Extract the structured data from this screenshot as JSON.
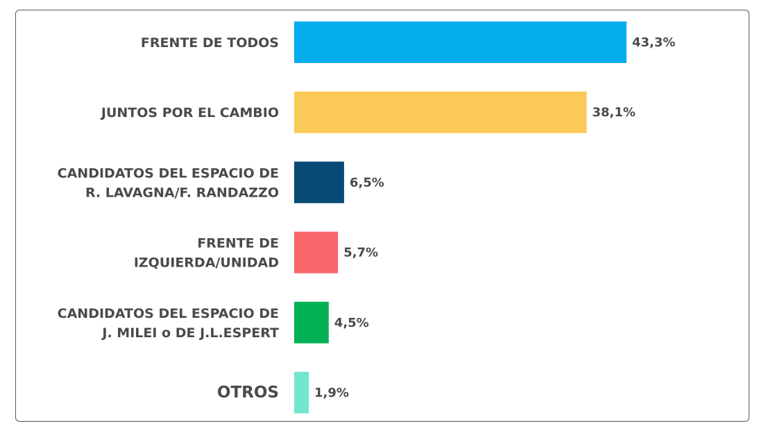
{
  "chart_data": {
    "type": "bar",
    "orientation": "horizontal",
    "title": "",
    "xlabel": "",
    "ylabel": "",
    "xlim": [
      0,
      45
    ],
    "grid": false,
    "categories": [
      "FRENTE DE TODOS",
      "JUNTOS POR EL CAMBIO",
      "CANDIDATOS DEL ESPACIO DE R. LAVAGNA/F. RANDAZZO",
      "FRENTE DE IZQUIERDA/UNIDAD",
      "CANDIDATOS DEL ESPACIO DE J. MILEI o DE J.L.ESPERT",
      "OTROS"
    ],
    "category_lines": [
      [
        "FRENTE DE TODOS"
      ],
      [
        "JUNTOS POR EL CAMBIO"
      ],
      [
        "CANDIDATOS DEL ESPACIO DE",
        "R. LAVAGNA/F. RANDAZZO"
      ],
      [
        "FRENTE DE",
        "IZQUIERDA/UNIDAD"
      ],
      [
        "CANDIDATOS DEL ESPACIO DE",
        "J. MILEI o DE J.L.ESPERT"
      ],
      [
        "OTROS"
      ]
    ],
    "values": [
      43.3,
      38.1,
      6.5,
      5.7,
      4.5,
      1.9
    ],
    "value_labels": [
      "43,3%",
      "38,1%",
      "6,5%",
      "5,7%",
      "4,5%",
      "1,9%"
    ],
    "colors": [
      "#05aded",
      "#fac958",
      "#064a75",
      "#f9686b",
      "#02b054",
      "#72e6cf"
    ]
  }
}
